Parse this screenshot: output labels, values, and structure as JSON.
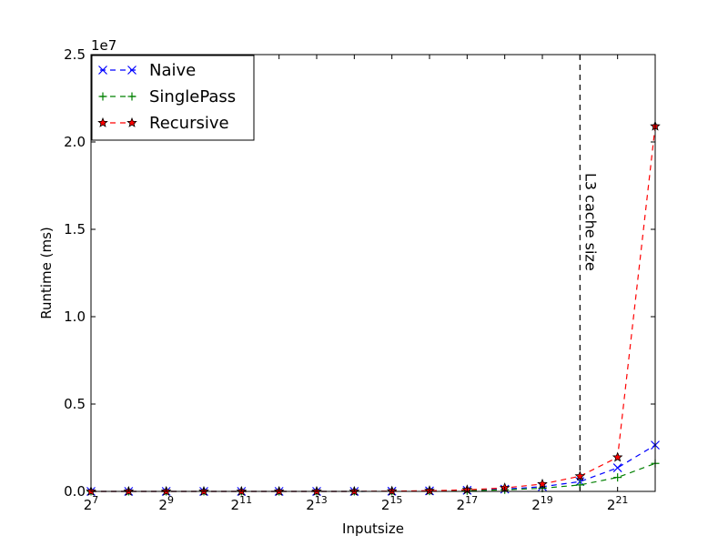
{
  "chart_data": {
    "type": "line",
    "xlabel": "Inputsize",
    "ylabel": "Runtime (ms)",
    "y_offset_label": "1e7",
    "x_scale": "log2",
    "x_tick_labels": [
      {
        "base": "2",
        "exp": "7"
      },
      {
        "base": "2",
        "exp": "9"
      },
      {
        "base": "2",
        "exp": "11"
      },
      {
        "base": "2",
        "exp": "13"
      },
      {
        "base": "2",
        "exp": "15"
      },
      {
        "base": "2",
        "exp": "17"
      },
      {
        "base": "2",
        "exp": "19"
      },
      {
        "base": "2",
        "exp": "21"
      }
    ],
    "y_tick_labels": [
      "0.0",
      "0.5",
      "1.0",
      "1.5",
      "2.0",
      "2.5"
    ],
    "xlim_exp": [
      7,
      22
    ],
    "ylim": [
      0,
      25000000
    ],
    "x": [
      128,
      256,
      512,
      1024,
      2048,
      4096,
      8192,
      16384,
      32768,
      65536,
      131072,
      262144,
      524288,
      1048576,
      2097152,
      4194304
    ],
    "series": [
      {
        "name": "Naive",
        "color": "#0000ff",
        "marker": "x",
        "values": [
          0,
          0,
          0,
          0,
          0,
          0,
          0,
          0,
          10000,
          30000,
          60000,
          130000,
          270000,
          560000,
          1350000,
          2650000
        ]
      },
      {
        "name": "SinglePass",
        "color": "#008000",
        "marker": "plus",
        "values": [
          0,
          0,
          0,
          0,
          0,
          0,
          0,
          0,
          8000,
          20000,
          40000,
          90000,
          180000,
          370000,
          800000,
          1600000
        ]
      },
      {
        "name": "Recursive",
        "color": "#ff0000",
        "marker": "star",
        "values": [
          0,
          0,
          0,
          0,
          0,
          0,
          0,
          0,
          15000,
          40000,
          90000,
          200000,
          420000,
          870000,
          1950000,
          20900000
        ]
      }
    ],
    "annotation": {
      "text": "L3 cache size",
      "x": 1048576,
      "line_color": "#000000",
      "line_style": "dashed"
    },
    "legend_placement": "top-left",
    "grid": false
  }
}
